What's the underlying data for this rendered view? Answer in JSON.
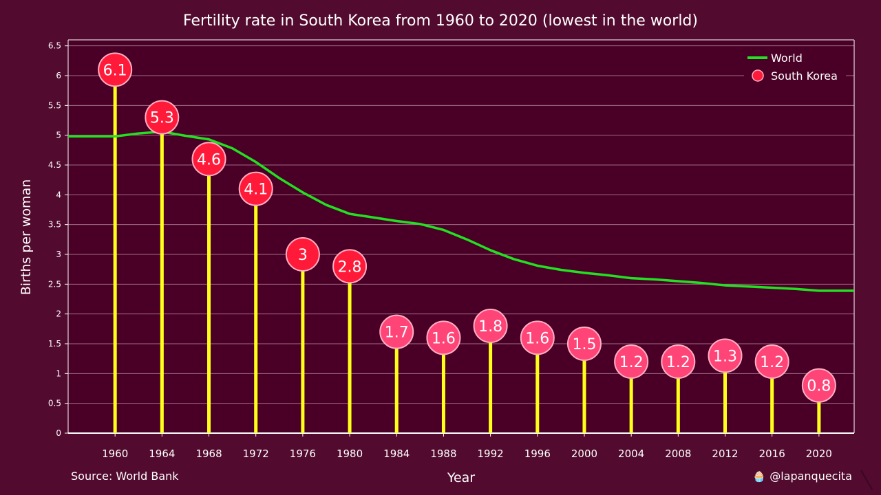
{
  "chart_data": {
    "type": "line",
    "title": "Fertility rate in South Korea from 1960 to 2020 (lowest in the world)",
    "xlabel": "Year",
    "ylabel": "Births per woman",
    "xlim": [
      1956,
      2023
    ],
    "ylim": [
      0,
      6.6
    ],
    "yticks": [
      0,
      0.5,
      1,
      1.5,
      2,
      2.5,
      3,
      3.5,
      4,
      4.5,
      5,
      5.5,
      6,
      6.5
    ],
    "xticks": [
      1960,
      1964,
      1968,
      1972,
      1976,
      1980,
      1984,
      1988,
      1992,
      1996,
      2000,
      2004,
      2008,
      2012,
      2016,
      2020
    ],
    "grid": "horizontal",
    "legend_position": "top-right",
    "series": [
      {
        "name": "World",
        "style": "line",
        "color": "#22e022",
        "x": [
          1956,
          1958,
          1960,
          1962,
          1964,
          1966,
          1968,
          1970,
          1972,
          1974,
          1976,
          1978,
          1980,
          1982,
          1984,
          1986,
          1988,
          1990,
          1992,
          1994,
          1996,
          1998,
          2000,
          2002,
          2004,
          2006,
          2008,
          2010,
          2012,
          2014,
          2016,
          2018,
          2020,
          2022,
          2023
        ],
        "values": [
          4.98,
          4.98,
          4.98,
          5.03,
          5.06,
          4.99,
          4.93,
          4.78,
          4.55,
          4.28,
          4.04,
          3.83,
          3.68,
          3.62,
          3.56,
          3.51,
          3.41,
          3.25,
          3.07,
          2.92,
          2.81,
          2.74,
          2.69,
          2.65,
          2.6,
          2.58,
          2.55,
          2.52,
          2.48,
          2.46,
          2.44,
          2.42,
          2.39,
          2.39,
          2.39
        ]
      },
      {
        "name": "South Korea",
        "style": "lollipop",
        "x": [
          1960,
          1964,
          1968,
          1972,
          1976,
          1980,
          1984,
          1988,
          1992,
          1996,
          2000,
          2004,
          2008,
          2012,
          2016,
          2020
        ],
        "values": [
          6.1,
          5.3,
          4.6,
          4.1,
          3,
          2.8,
          1.7,
          1.6,
          1.8,
          1.6,
          1.5,
          1.2,
          1.2,
          1.3,
          1.2,
          0.8
        ],
        "labels": [
          "6.1",
          "5.3",
          "4.6",
          "4.1",
          "3",
          "2.8",
          "1.7",
          "1.6",
          "1.8",
          "1.6",
          "1.5",
          "1.2",
          "1.2",
          "1.3",
          "1.2",
          "0.8"
        ]
      }
    ],
    "colors": {
      "page_background": "#520a2e",
      "plot_background": "#4a0026",
      "gridline": "#9e6f84",
      "stem": "#ffff1a",
      "marker_high": "#ff1a3a",
      "marker_low": "#ff4477",
      "marker_stroke": "#ffb0c4",
      "world_line": "#22e022",
      "axis": "#ffffff"
    }
  },
  "footer": {
    "source": "Source: World Bank",
    "credit": "@lapanquecita",
    "credit_icon": "cupcake-icon"
  }
}
